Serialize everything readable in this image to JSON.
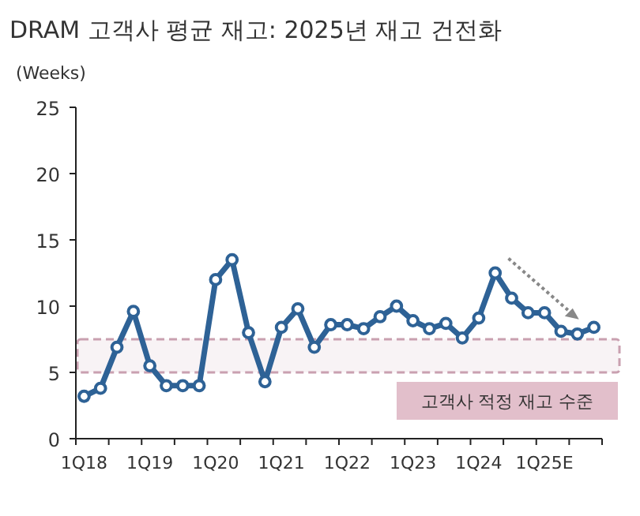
{
  "chart_data": {
    "type": "line",
    "title": "DRAM 고객사 평균 재고: 2025년 재고 건전화",
    "ylabel": "(Weeks)",
    "categories": [
      "1Q18",
      null,
      null,
      null,
      "1Q19",
      null,
      null,
      null,
      "1Q20",
      null,
      null,
      null,
      "1Q21",
      null,
      null,
      null,
      "1Q22",
      null,
      null,
      null,
      "1Q23",
      null,
      null,
      null,
      "1Q24",
      null,
      null,
      null,
      "1Q25E",
      null,
      null,
      null
    ],
    "series": [
      {
        "color": "#2e6296",
        "values": [
          3.2,
          3.8,
          6.9,
          9.6,
          5.5,
          4.0,
          4.0,
          4.0,
          12.0,
          13.5,
          8.0,
          4.3,
          8.4,
          9.8,
          6.9,
          8.6,
          8.6,
          8.3,
          9.2,
          10.0,
          8.9,
          8.3,
          8.7,
          7.6,
          9.1,
          12.5,
          10.6,
          9.5,
          9.5,
          8.1,
          7.9,
          8.4
        ]
      }
    ],
    "ylim": [
      0,
      25
    ],
    "yticks": [
      0,
      5,
      10,
      15,
      20,
      25
    ],
    "grid": false,
    "marker": "circle",
    "line_style": "solid",
    "bands": [
      {
        "axis": "y",
        "from": 5,
        "to": 7.5,
        "label": "고객사 적정 재고 수준",
        "color": "#c9a0b0"
      }
    ]
  }
}
